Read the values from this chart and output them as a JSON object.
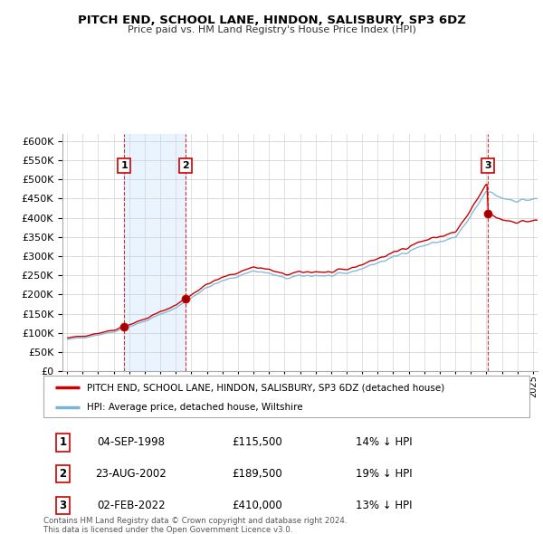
{
  "title": "PITCH END, SCHOOL LANE, HINDON, SALISBURY, SP3 6DZ",
  "subtitle": "Price paid vs. HM Land Registry's House Price Index (HPI)",
  "legend_property": "PITCH END, SCHOOL LANE, HINDON, SALISBURY, SP3 6DZ (detached house)",
  "legend_hpi": "HPI: Average price, detached house, Wiltshire",
  "footer1": "Contains HM Land Registry data © Crown copyright and database right 2024.",
  "footer2": "This data is licensed under the Open Government Licence v3.0.",
  "sales": [
    {
      "num": 1,
      "date": "04-SEP-1998",
      "price": 115500,
      "pct": "14% ↓ HPI",
      "year": 1998.67
    },
    {
      "num": 2,
      "date": "23-AUG-2002",
      "price": 189500,
      "pct": "19% ↓ HPI",
      "year": 2002.64
    },
    {
      "num": 3,
      "date": "02-FEB-2022",
      "price": 410000,
      "pct": "13% ↓ HPI",
      "year": 2022.09
    }
  ],
  "ylim": [
    0,
    620000
  ],
  "xlim_left": 1994.7,
  "xlim_right": 2025.3,
  "hpi_color": "#7ab4d8",
  "property_color": "#cc0000",
  "dashed_color": "#cc0000",
  "shade_color": "#ddeeff",
  "bg_color": "#ffffff",
  "grid_color": "#cccccc"
}
